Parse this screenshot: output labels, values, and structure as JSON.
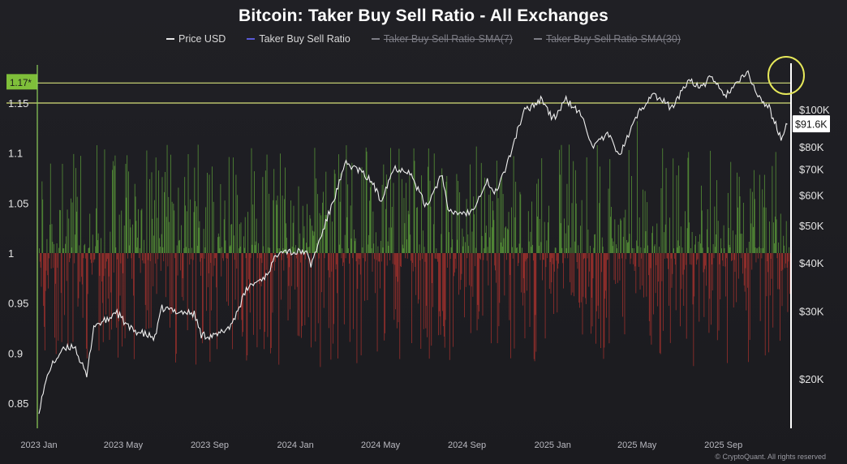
{
  "title": "Bitcoin: Taker Buy Sell Ratio - All Exchanges",
  "legend": [
    {
      "label": "Price USD",
      "color": "#e8e8e8",
      "active": true
    },
    {
      "label": "Taker Buy Sell Ratio",
      "color": "#5a5ad8",
      "active": true
    },
    {
      "label": "Taker Buy Sell Ratio-SMA(7)",
      "color": "#7d7d85",
      "active": false
    },
    {
      "label": "Taker Buy Sell Ratio-SMA(30)",
      "color": "#7d7d85",
      "active": false
    }
  ],
  "watermark": "© CryptoQuant. All rights reserved",
  "colors": {
    "background": "#1c1b20",
    "buy_bar": "#5b9c3a",
    "sell_bar": "#a8322e",
    "price_line": "#f0f0f0",
    "highlight_line": "#d6e07a",
    "circle": "#e6e85a",
    "marker_label_bg": "#7fbf3a"
  },
  "chart_data": {
    "type": "bar",
    "x_ticks": [
      "2023 Jan",
      "2023 May",
      "2023 Sep",
      "2024 Jan",
      "2024 May",
      "2024 Sep",
      "2025 Jan",
      "2025 May",
      "2025 Sep"
    ],
    "left_axis": {
      "ticks": [
        "0.85",
        "0.9",
        "0.95",
        "1",
        "1.05",
        "1.1",
        "1.15"
      ],
      "range": [
        0.84,
        1.18
      ],
      "baseline": 1
    },
    "right_axis": {
      "ticks": [
        "$20K",
        "$30K",
        "$40K",
        "$50K",
        "$60K",
        "$70K",
        "$80K",
        "$100K"
      ],
      "scale": "log",
      "range": [
        15000,
        140000
      ]
    },
    "reference_lines": [
      {
        "label": "1.17*",
        "value": 1.17
      },
      {
        "label": "",
        "value": 1.15
      }
    ],
    "current_price_label": "$91.6K",
    "price_usd": [
      [
        "2023-01-01",
        16600
      ],
      [
        "2023-01-15",
        21000
      ],
      [
        "2023-02-01",
        23500
      ],
      [
        "2023-02-20",
        24500
      ],
      [
        "2023-03-10",
        20200
      ],
      [
        "2023-03-20",
        27500
      ],
      [
        "2023-04-10",
        28500
      ],
      [
        "2023-04-20",
        30000
      ],
      [
        "2023-05-10",
        27000
      ],
      [
        "2023-06-15",
        25500
      ],
      [
        "2023-06-25",
        30500
      ],
      [
        "2023-07-15",
        30000
      ],
      [
        "2023-08-10",
        29500
      ],
      [
        "2023-08-20",
        26000
      ],
      [
        "2023-09-10",
        25800
      ],
      [
        "2023-10-01",
        27500
      ],
      [
        "2023-10-25",
        34500
      ],
      [
        "2023-11-20",
        37000
      ],
      [
        "2023-12-10",
        43500
      ],
      [
        "2024-01-01",
        42500
      ],
      [
        "2024-01-15",
        43000
      ],
      [
        "2024-01-23",
        39500
      ],
      [
        "2024-02-15",
        52000
      ],
      [
        "2024-03-13",
        72500
      ],
      [
        "2024-04-01",
        69500
      ],
      [
        "2024-04-20",
        64500
      ],
      [
        "2024-05-01",
        58000
      ],
      [
        "2024-05-20",
        70500
      ],
      [
        "2024-06-10",
        69500
      ],
      [
        "2024-07-05",
        56000
      ],
      [
        "2024-07-28",
        68500
      ],
      [
        "2024-08-05",
        54000
      ],
      [
        "2024-09-06",
        54000
      ],
      [
        "2024-09-30",
        65500
      ],
      [
        "2024-10-10",
        60000
      ],
      [
        "2024-10-29",
        72500
      ],
      [
        "2024-11-12",
        88500
      ],
      [
        "2024-11-22",
        99000
      ],
      [
        "2024-12-17",
        107000
      ],
      [
        "2025-01-01",
        94000
      ],
      [
        "2025-01-20",
        106000
      ],
      [
        "2025-02-10",
        97000
      ],
      [
        "2025-02-28",
        80000
      ],
      [
        "2025-03-20",
        86000
      ],
      [
        "2025-04-07",
        76500
      ],
      [
        "2025-05-01",
        96500
      ],
      [
        "2025-05-22",
        110000
      ],
      [
        "2025-06-20",
        101000
      ],
      [
        "2025-07-14",
        120000
      ],
      [
        "2025-08-02",
        113000
      ],
      [
        "2025-08-14",
        123500
      ],
      [
        "2025-09-01",
        108000
      ],
      [
        "2025-10-06",
        124500
      ],
      [
        "2025-10-20",
        108000
      ],
      [
        "2025-11-05",
        101000
      ],
      [
        "2025-11-22",
        84000
      ],
      [
        "2025-12-01",
        91600
      ]
    ]
  }
}
